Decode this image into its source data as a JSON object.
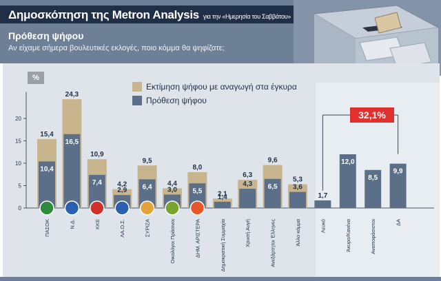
{
  "header": {
    "title": "Δημοσκόπηση της Metron Analysis",
    "title_suffix": "για την «Ημερησία του Σαββάτου»",
    "subtitle": "Πρόθεση ψήφου",
    "question": "Αν είχαμε σήμερα βουλευτικές εκλογές, ποιο κόμμα θα ψηφίζατε;"
  },
  "percent_badge": "%",
  "callout": "32,1%",
  "colors": {
    "estimate": "#c9b58d",
    "intention": "#5c6f89",
    "callout": "#e0312f"
  },
  "chart_data": {
    "type": "bar",
    "ylabel": "%",
    "ylim": [
      0,
      25
    ],
    "yticks": [
      0,
      5,
      10,
      15,
      20
    ],
    "grid": false,
    "legend_position": "top-center",
    "categories": [
      "ΠΑΣΟΚ",
      "Ν.Δ.",
      "ΚΚΕ",
      "ΛΑ.Ο.Σ.",
      "ΣΥΡΙΖΑ",
      "Οικολόγοι Πράσινοι",
      "ΔΗΜ. ΑΡΙΣΤΕΡΑ",
      "Δημοκρατική Συμμαχία",
      "Χρυσή Αυγή",
      "Ανεξάρτητοι Έλληνες",
      "Άλλο κόμμα",
      "Λευκό",
      "Άκυρο/Κανένα",
      "Αναποφάσιστοι",
      "ΔΑ"
    ],
    "category_icons": [
      "pasok-sun-icon",
      "nd-torch-icon",
      "kke-hammer-sickle-icon",
      "laos-icon",
      "syriza-flag-icon",
      "ecogreens-sunflower-icon",
      "dimar-icon",
      "",
      "",
      "",
      "",
      "",
      "",
      "",
      ""
    ],
    "series": [
      {
        "name": "Εκτίμηση ψήφου με αναγωγή στα έγκυρα",
        "values": [
          15.4,
          24.3,
          10.9,
          4.2,
          9.5,
          4.4,
          8.0,
          2.1,
          6.3,
          9.6,
          5.3,
          null,
          null,
          null,
          null
        ]
      },
      {
        "name": "Πρόθεση ψήφου",
        "values": [
          10.4,
          16.5,
          7.4,
          2.9,
          6.4,
          3.0,
          5.5,
          1.4,
          4.3,
          6.5,
          3.6,
          1.7,
          12.0,
          8.5,
          9.9
        ]
      }
    ],
    "value_labels": {
      "estimate": [
        "15,4",
        "24,3",
        "10,9",
        "4,2",
        "9,5",
        "4,4",
        "8,0",
        "2,1",
        "6,3",
        "9,6",
        "5,3",
        "",
        "",
        "",
        ""
      ],
      "intention": [
        "10,4",
        "16,5",
        "7,4",
        "2,9",
        "6,4",
        "3,0",
        "5,5",
        "1,4",
        "4,3",
        "6,5",
        "3,6",
        "1,7",
        "12,0",
        "8,5",
        "9,9"
      ]
    },
    "bracket": {
      "label": "32,1%",
      "from": "Λευκό",
      "to": "ΔΑ"
    }
  }
}
